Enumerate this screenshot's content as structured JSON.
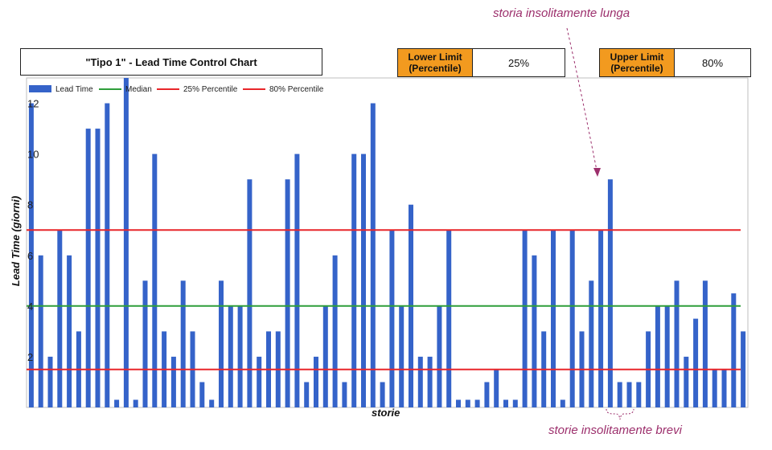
{
  "header": {
    "title": "\"Tipo 1\" - Lead Time Control Chart",
    "lower_limit_label_1": "Lower Limit",
    "lower_limit_label_2": "(Percentile)",
    "lower_limit_value": "25%",
    "upper_limit_label_1": "Upper Limit",
    "upper_limit_label_2": "(Percentile)",
    "upper_limit_value": "80%"
  },
  "annotations": {
    "long": "storia insolitamente lunga",
    "short": "storie insolitamente brevi"
  },
  "colors": {
    "bar": "#3563c9",
    "median": "#2e9e3a",
    "percentile": "#e8262a",
    "annotation": "#9c2f6c",
    "limit_box": "#f29a1f"
  },
  "chart_data": {
    "type": "bar",
    "xlabel": "storie",
    "ylabel": "Lead Time (giorni)",
    "ylim": [
      0,
      13
    ],
    "yticks": [
      "2",
      "4",
      "6",
      "8",
      "10",
      "12"
    ],
    "grid": false,
    "legend_position": "top-left",
    "series": [
      {
        "name": "Lead Time",
        "values": [
          12,
          6,
          2,
          7,
          6,
          3,
          11,
          11,
          12,
          0.3,
          13,
          0.3,
          5,
          10,
          3,
          2,
          5,
          3,
          1,
          0.3,
          5,
          4,
          4,
          9,
          2,
          3,
          3,
          9,
          10,
          1,
          2,
          4,
          6,
          1,
          10,
          10,
          12,
          1,
          7,
          4,
          8,
          2,
          2,
          4,
          7,
          0.3,
          0.3,
          0.3,
          1,
          1.5,
          0.3,
          0.3,
          7,
          6,
          3,
          7,
          0.3,
          7,
          3,
          5,
          7,
          9,
          1,
          1,
          1,
          3,
          4,
          4,
          5,
          2,
          3.5,
          5,
          1.5,
          1.5,
          4.5,
          3
        ]
      }
    ],
    "reference_lines": [
      {
        "name": "Median",
        "value": 4
      },
      {
        "name": "25% Percentile",
        "value": 1.5
      },
      {
        "name": "80% Percentile",
        "value": 7
      }
    ]
  }
}
